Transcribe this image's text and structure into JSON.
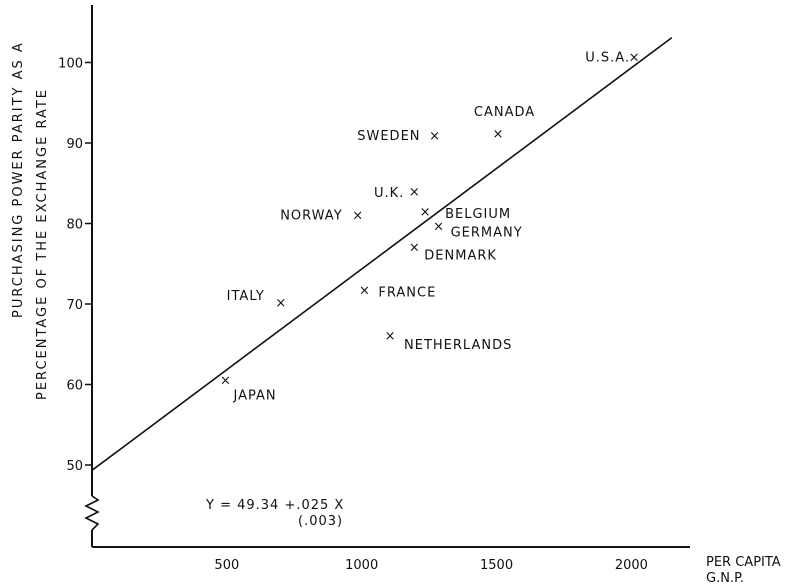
{
  "chart_data": {
    "type": "scatter",
    "ylabel_line1": "PURCHASING POWER PARITY AS A",
    "ylabel_line2": "PERCENTAGE OF THE EXCHANGE RATE",
    "xlabel_line1": "PER CAPITA",
    "xlabel_line2": "G.N.P.",
    "xlim": [
      0,
      2300
    ],
    "ylim": [
      45,
      105
    ],
    "x_ticks": [
      500,
      1000,
      1500,
      2000
    ],
    "y_ticks": [
      50,
      60,
      70,
      80,
      90,
      100
    ],
    "axis_break": true,
    "grid": false,
    "marker": "x",
    "points": [
      {
        "label": "U.S.A.",
        "x": 2010,
        "y": 100.6
      },
      {
        "label": "CANADA",
        "x": 1505,
        "y": 91.1
      },
      {
        "label": "SWEDEN",
        "x": 1270,
        "y": 90.9
      },
      {
        "label": "U.K.",
        "x": 1195,
        "y": 83.9
      },
      {
        "label": "NORWAY",
        "x": 985,
        "y": 81.0
      },
      {
        "label": "BELGIUM",
        "x": 1235,
        "y": 81.4
      },
      {
        "label": "GERMANY",
        "x": 1285,
        "y": 79.6
      },
      {
        "label": "DENMARK",
        "x": 1195,
        "y": 77.0
      },
      {
        "label": "ITALY",
        "x": 700,
        "y": 70.1
      },
      {
        "label": "FRANCE",
        "x": 1010,
        "y": 71.7
      },
      {
        "label": "NETHERLANDS",
        "x": 1105,
        "y": 66.0
      },
      {
        "label": "JAPAN",
        "x": 495,
        "y": 60.5
      }
    ],
    "regression": {
      "intercept": 49.34,
      "slope": 0.025,
      "x_range": [
        0,
        2150
      ]
    },
    "equation_line1": "Y = 49.34 +.025 X",
    "equation_line2": "(.003)"
  }
}
